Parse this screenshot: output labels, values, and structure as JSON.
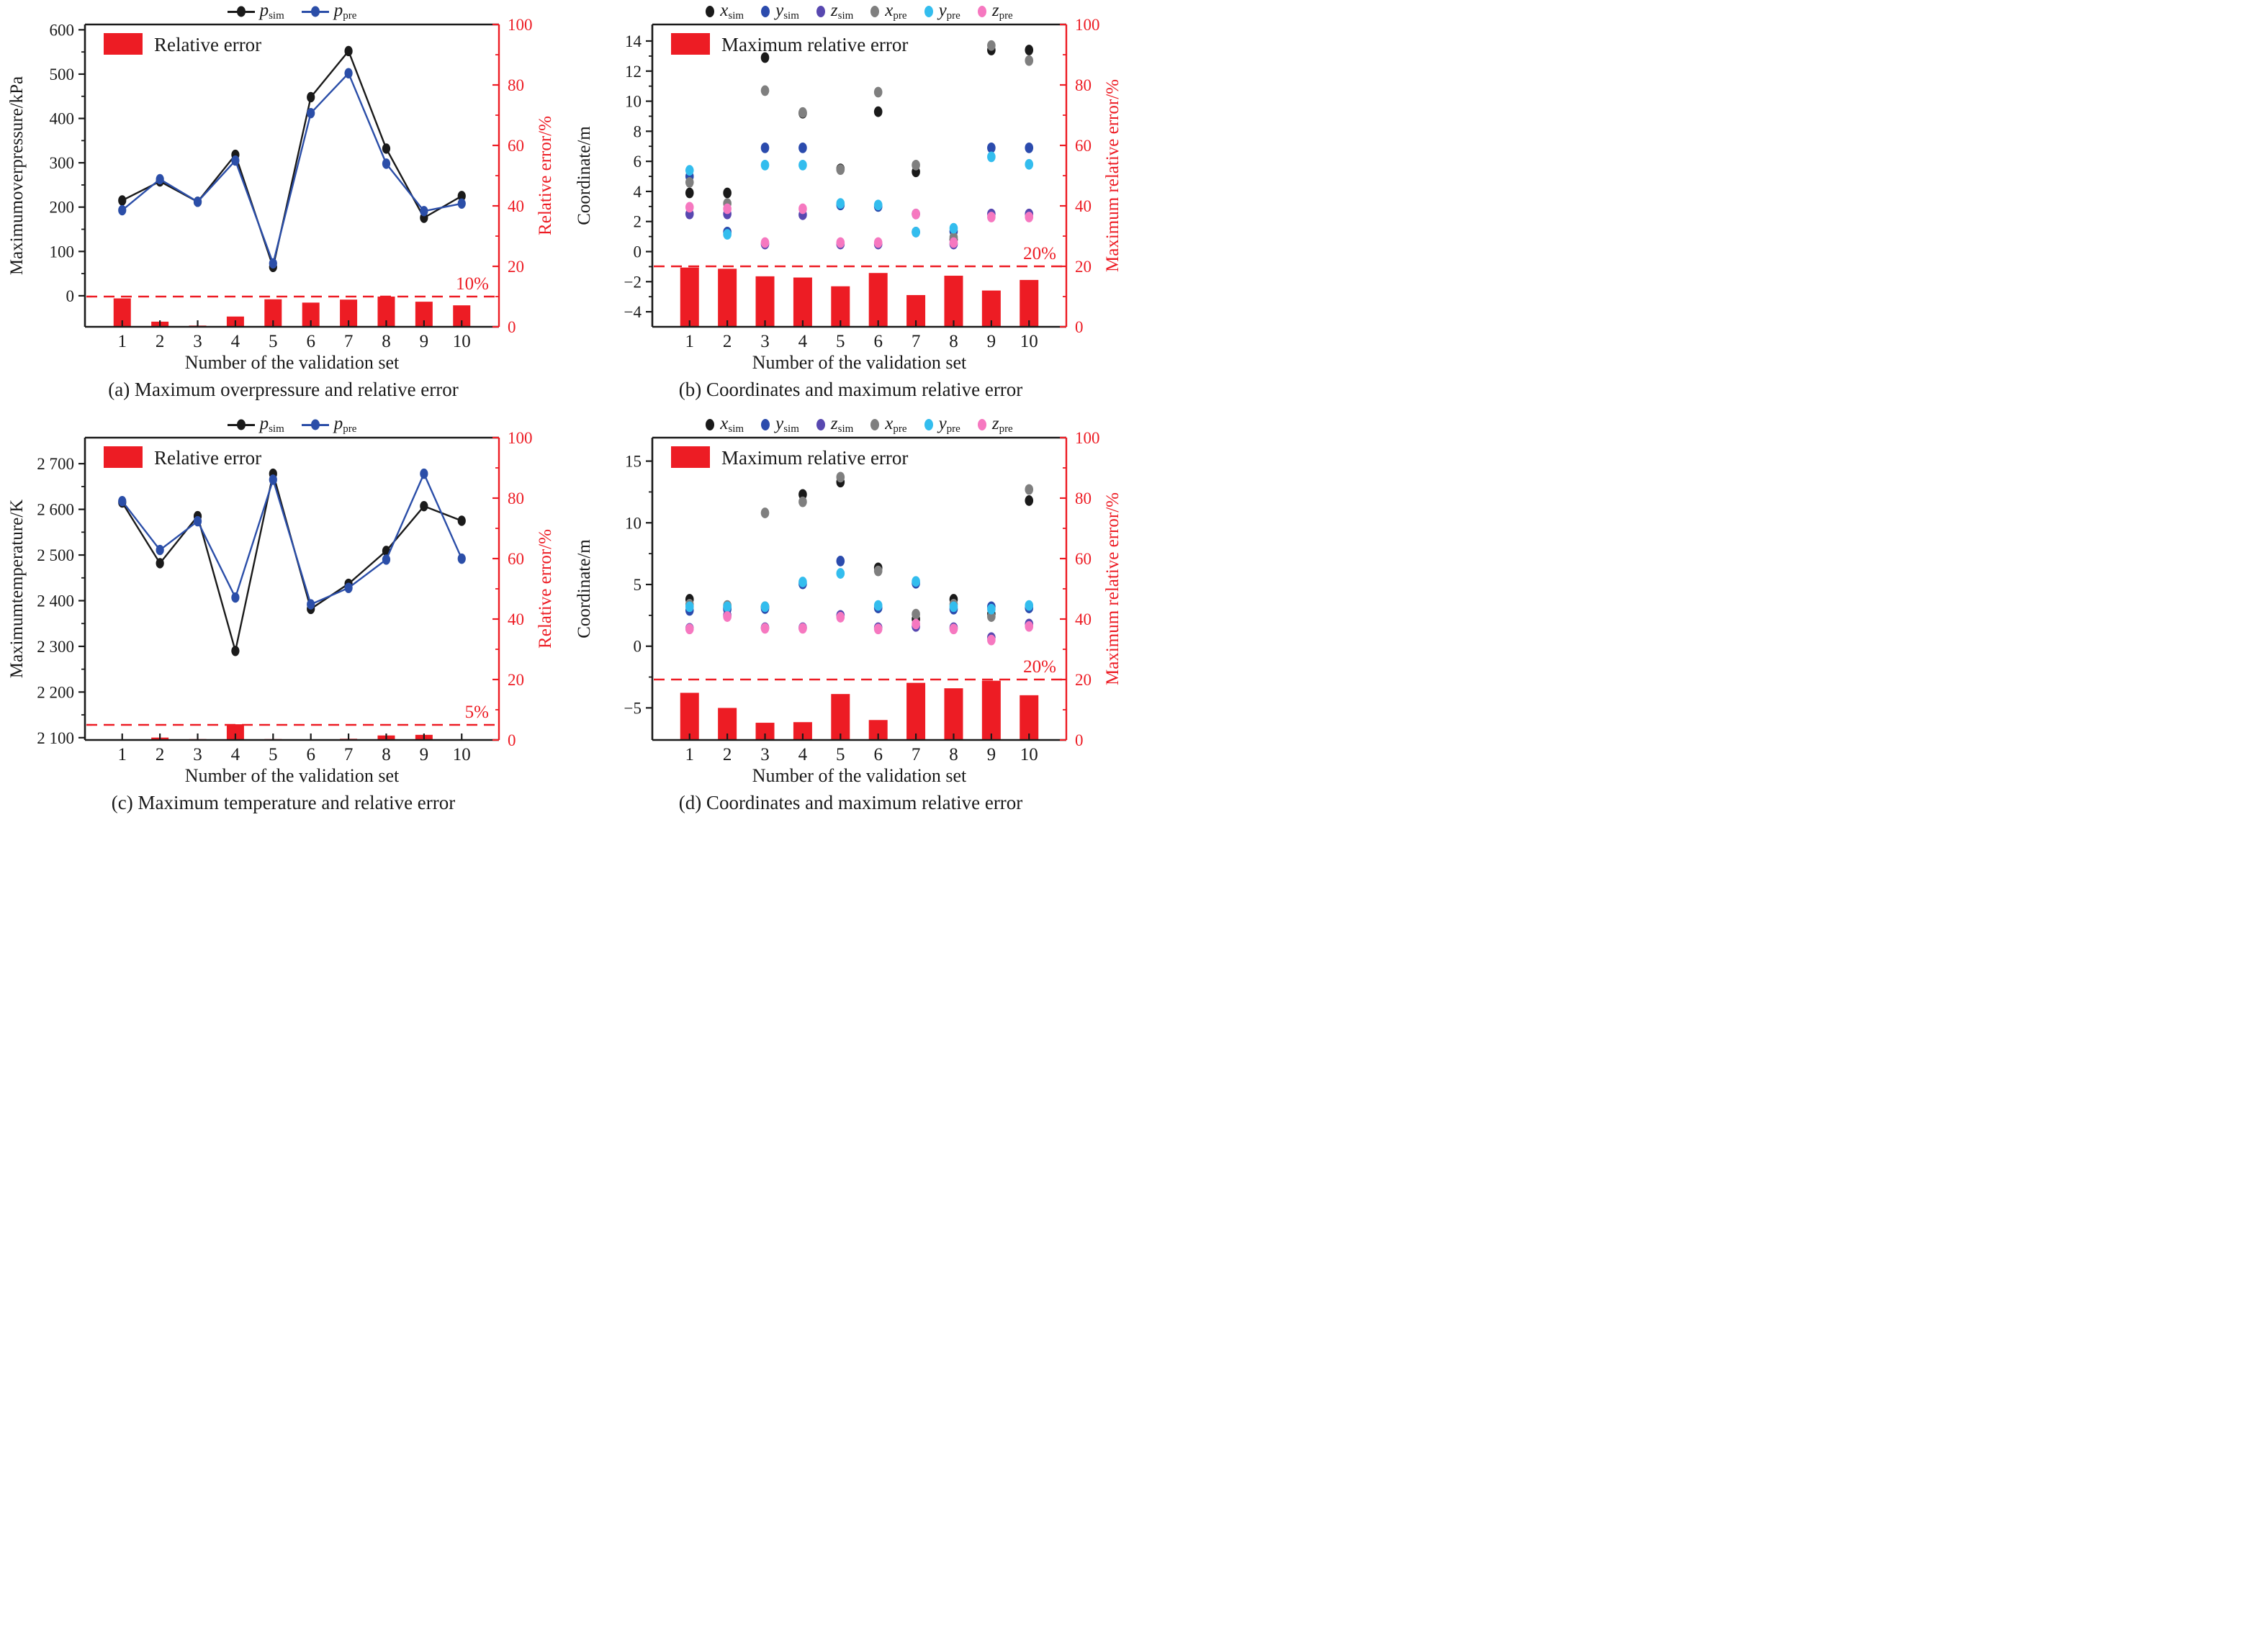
{
  "figure": {
    "background": "#ffffff",
    "axis_color": "#1a1a1a",
    "error_color": "#ed1c24"
  },
  "chart_data": [
    {
      "id": "a",
      "type": "line+bar",
      "caption": "(a) Maximum overpressure and relative error",
      "xlabel": "Number of the validation set",
      "ylabel_left": "Maximumoverpressure/kPa",
      "ylabel_right": "Relative error/%",
      "bar_legend": "Relative error",
      "x": [
        1,
        2,
        3,
        4,
        5,
        6,
        7,
        8,
        9,
        10
      ],
      "series": [
        {
          "name": "p_sim",
          "label_main": "p",
          "label_sub": "sim",
          "type": "line",
          "color": "#1a1a1a",
          "values": [
            215,
            258,
            212,
            318,
            65,
            448,
            552,
            332,
            176,
            225
          ]
        },
        {
          "name": "p_pre",
          "label_main": "p",
          "label_sub": "pre",
          "type": "line",
          "color": "#2b4ea8",
          "values": [
            193,
            263,
            212,
            305,
            73,
            412,
            502,
            298,
            191,
            208
          ]
        },
        {
          "name": "relative_error",
          "label": "Relative error",
          "type": "bar",
          "axis": "right",
          "color": "#ed1c24",
          "values": [
            9.4,
            1.7,
            0.4,
            3.4,
            9.1,
            8.0,
            9.0,
            10.0,
            8.3,
            7.1
          ]
        }
      ],
      "y_left": {
        "min": -70,
        "max": 612,
        "ticks": [
          0,
          100,
          200,
          300,
          400,
          500,
          600
        ],
        "tick_labels": [
          "0",
          "100",
          "200",
          "300",
          "400",
          "500",
          "600"
        ],
        "minor_step": 50
      },
      "y_right": {
        "min": 0,
        "max": 100,
        "ticks": [
          0,
          20,
          40,
          60,
          80,
          100
        ],
        "tick_labels": [
          "0",
          "20",
          "40",
          "60",
          "80",
          "100"
        ],
        "minor_step": 10
      },
      "threshold": {
        "value": 10,
        "axis": "right",
        "label": "10%"
      },
      "grid": false,
      "legend_position": "top"
    },
    {
      "id": "b",
      "type": "scatter+bar",
      "caption": "(b) Coordinates and maximum relative error",
      "xlabel": "Number of the validation set",
      "ylabel_left": "Coordinate/m",
      "ylabel_right": "Maximum relative error/%",
      "bar_legend": "Maximum relative error",
      "x": [
        1,
        2,
        3,
        4,
        5,
        6,
        7,
        8,
        9,
        10
      ],
      "series": [
        {
          "name": "x_sim",
          "label_main": "x",
          "label_sub": "sim",
          "type": "scatter",
          "color": "#1a1a1a",
          "values": [
            3.9,
            3.9,
            12.9,
            9.2,
            5.5,
            9.3,
            5.3,
            0.8,
            13.4,
            13.4
          ]
        },
        {
          "name": "y_sim",
          "label_main": "y",
          "label_sub": "sim",
          "type": "scatter",
          "color": "#2b4bad",
          "values": [
            5.0,
            1.3,
            6.9,
            6.9,
            3.1,
            3.0,
            1.3,
            1.35,
            6.9,
            6.9
          ]
        },
        {
          "name": "z_sim",
          "label_main": "z",
          "label_sub": "sim",
          "type": "scatter",
          "color": "#5848b0",
          "values": [
            2.5,
            2.5,
            0.5,
            2.45,
            0.5,
            0.5,
            2.5,
            0.5,
            2.5,
            2.5
          ]
        },
        {
          "name": "x_pre",
          "label_main": "x",
          "label_sub": "pre",
          "type": "scatter",
          "color": "#7f7f7f",
          "values": [
            4.6,
            3.2,
            10.7,
            9.25,
            5.45,
            10.6,
            5.75,
            0.95,
            13.7,
            12.7
          ]
        },
        {
          "name": "y_pre",
          "label_main": "y",
          "label_sub": "pre",
          "type": "scatter",
          "color": "#33bdee",
          "values": [
            5.4,
            1.15,
            5.75,
            5.75,
            3.2,
            3.1,
            1.3,
            1.55,
            6.3,
            5.8
          ]
        },
        {
          "name": "z_pre",
          "label_main": "z",
          "label_sub": "pre",
          "type": "scatter",
          "color": "#f678c0",
          "values": [
            2.95,
            2.85,
            0.6,
            2.85,
            0.6,
            0.6,
            2.5,
            0.6,
            2.3,
            2.3
          ]
        },
        {
          "name": "max_relative_error",
          "label": "Maximum relative error",
          "type": "bar",
          "axis": "right",
          "color": "#ed1c24",
          "values": [
            19.6,
            19.2,
            16.7,
            16.3,
            13.4,
            17.8,
            10.5,
            16.9,
            12.0,
            15.5
          ]
        }
      ],
      "y_left": {
        "min": -5.0,
        "max": 15.1,
        "ticks": [
          -4,
          -2,
          0,
          2,
          4,
          6,
          8,
          10,
          12,
          14
        ],
        "tick_labels": [
          "−4",
          "−2",
          "0",
          "2",
          "4",
          "6",
          "8",
          "10",
          "12",
          "14"
        ],
        "minor_step": 1
      },
      "y_right": {
        "min": 0,
        "max": 100,
        "ticks": [
          0,
          20,
          40,
          60,
          80,
          100
        ],
        "tick_labels": [
          "0",
          "20",
          "40",
          "60",
          "80",
          "100"
        ],
        "minor_step": 10
      },
      "threshold": {
        "value": 20,
        "axis": "right",
        "label": "20%"
      },
      "grid": false,
      "legend_position": "top"
    },
    {
      "id": "c",
      "type": "line+bar",
      "caption": "(c) Maximum temperature and relative error",
      "xlabel": "Number of the validation set",
      "ylabel_left": "Maximumtemperature/K",
      "ylabel_right": "Relative error/%",
      "bar_legend": "Relative error",
      "x": [
        1,
        2,
        3,
        4,
        5,
        6,
        7,
        8,
        9,
        10
      ],
      "series": [
        {
          "name": "p_sim",
          "label_main": "p",
          "label_sub": "sim",
          "type": "line",
          "color": "#1a1a1a",
          "values": [
            2615,
            2482,
            2585,
            2290,
            2678,
            2382,
            2437,
            2509,
            2607,
            2575
          ]
        },
        {
          "name": "p_pre",
          "label_main": "p",
          "label_sub": "pre",
          "type": "line",
          "color": "#2b4ea8",
          "values": [
            2618,
            2511,
            2574,
            2407,
            2665,
            2392,
            2428,
            2490,
            2678,
            2492
          ]
        },
        {
          "name": "relative_error",
          "label": "Relative error",
          "type": "bar",
          "axis": "right",
          "color": "#ed1c24",
          "values": [
            0.2,
            0.8,
            0.3,
            5.2,
            0.3,
            0.2,
            0.4,
            1.5,
            1.7,
            0.2
          ]
        }
      ],
      "y_left": {
        "min": 2095,
        "max": 2757,
        "ticks": [
          2100,
          2200,
          2300,
          2400,
          2500,
          2600,
          2700
        ],
        "tick_labels": [
          "2 100",
          "2 200",
          "2 300",
          "2 400",
          "2 500",
          "2 600",
          "2 700"
        ],
        "minor_step": 50
      },
      "y_right": {
        "min": 0,
        "max": 100,
        "ticks": [
          0,
          20,
          40,
          60,
          80,
          100
        ],
        "tick_labels": [
          "0",
          "20",
          "40",
          "60",
          "80",
          "100"
        ],
        "minor_step": 10
      },
      "threshold": {
        "value": 5,
        "axis": "right",
        "label": "5%"
      },
      "grid": false,
      "legend_position": "top"
    },
    {
      "id": "d",
      "type": "scatter+bar",
      "caption": "(d) Coordinates and maximum relative error",
      "xlabel": "Number of the validation set",
      "ylabel_left": "Coordinate/m",
      "ylabel_right": "Maximum relative error/%",
      "bar_legend": "Maximum relative error",
      "x": [
        1,
        2,
        3,
        4,
        5,
        6,
        7,
        8,
        9,
        10
      ],
      "series": [
        {
          "name": "x_sim",
          "label_main": "x",
          "label_sub": "sim",
          "type": "scatter",
          "color": "#1a1a1a",
          "values": [
            3.8,
            3.1,
            3.2,
            12.3,
            13.3,
            6.35,
            2.2,
            3.8,
            2.6,
            11.8
          ]
        },
        {
          "name": "y_sim",
          "label_main": "y",
          "label_sub": "sim",
          "type": "scatter",
          "color": "#2b4bad",
          "values": [
            2.9,
            3.0,
            3.05,
            5.05,
            6.9,
            3.1,
            5.1,
            3.0,
            3.2,
            3.1
          ]
        },
        {
          "name": "z_sim",
          "label_main": "z",
          "label_sub": "sim",
          "type": "scatter",
          "color": "#5848b0",
          "values": [
            1.45,
            2.5,
            1.5,
            1.5,
            2.5,
            1.5,
            1.6,
            1.5,
            0.7,
            1.8
          ]
        },
        {
          "name": "x_pre",
          "label_main": "x",
          "label_sub": "pre",
          "type": "scatter",
          "color": "#7f7f7f",
          "values": [
            3.4,
            3.3,
            10.8,
            11.7,
            13.7,
            6.1,
            2.6,
            3.4,
            2.4,
            12.7
          ]
        },
        {
          "name": "y_pre",
          "label_main": "y",
          "label_sub": "pre",
          "type": "scatter",
          "color": "#33bdee",
          "values": [
            3.2,
            3.2,
            3.2,
            5.2,
            5.9,
            3.3,
            5.25,
            3.2,
            3.0,
            3.3
          ]
        },
        {
          "name": "z_pre",
          "label_main": "z",
          "label_sub": "pre",
          "type": "scatter",
          "color": "#f678c0",
          "values": [
            1.4,
            2.4,
            1.45,
            1.45,
            2.35,
            1.4,
            1.8,
            1.4,
            0.5,
            1.6
          ]
        },
        {
          "name": "max_relative_error",
          "label": "Maximum relative error",
          "type": "bar",
          "axis": "right",
          "color": "#ed1c24",
          "values": [
            15.6,
            10.6,
            5.7,
            5.9,
            15.2,
            6.6,
            18.9,
            17.1,
            19.6,
            14.8
          ]
        }
      ],
      "y_left": {
        "min": -7.6,
        "max": 16.9,
        "ticks": [
          -5,
          0,
          5,
          10,
          15
        ],
        "tick_labels": [
          "−5",
          "0",
          "5",
          "10",
          "15"
        ],
        "minor_step": 2.5
      },
      "y_right": {
        "min": 0,
        "max": 100,
        "ticks": [
          0,
          20,
          40,
          60,
          80,
          100
        ],
        "tick_labels": [
          "0",
          "20",
          "40",
          "60",
          "80",
          "100"
        ],
        "minor_step": 10
      },
      "threshold": {
        "value": 20,
        "axis": "right",
        "label": "20%"
      },
      "grid": false,
      "legend_position": "top"
    }
  ]
}
